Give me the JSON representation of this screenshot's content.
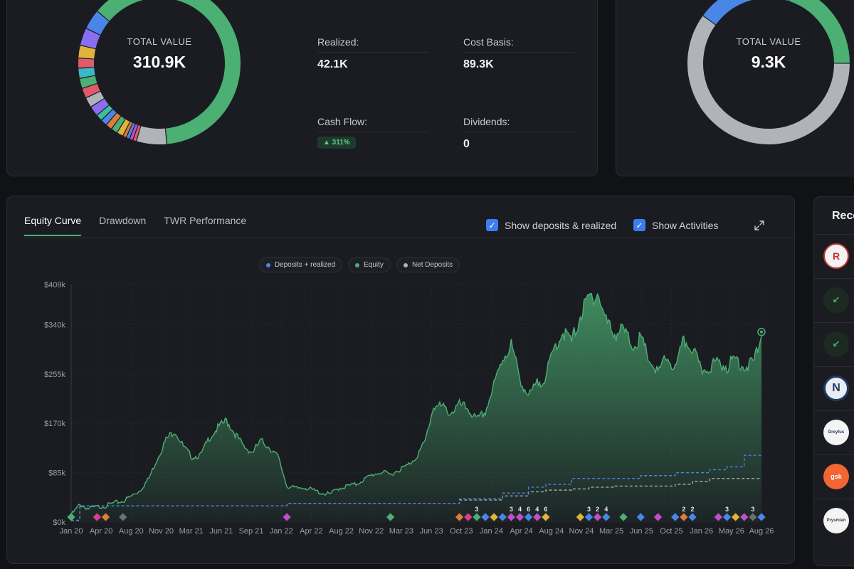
{
  "summary": {
    "total_caption": "TOTAL VALUE",
    "total_value": "310.9K",
    "stats": {
      "realized_label": "Realized:",
      "realized_value": "42.1K",
      "cost_basis_label": "Cost Basis:",
      "cost_basis_value": "89.3K",
      "cash_flow_label": "Cash Flow:",
      "cash_flow_badge": "▲ 311%",
      "dividends_label": "Dividends:",
      "dividends_value": "0"
    }
  },
  "summary2": {
    "total_caption": "TOTAL VALUE",
    "total_value": "9.3K"
  },
  "chart_panel": {
    "tabs": [
      {
        "label": "Equity Curve",
        "active": true
      },
      {
        "label": "Drawdown",
        "active": false
      },
      {
        "label": "TWR Performance",
        "active": false
      }
    ],
    "options": [
      {
        "label": "Show deposits & realized",
        "checked": true
      },
      {
        "label": "Show Activities",
        "checked": true
      }
    ],
    "expand_icon": "expand-icon"
  },
  "recent": {
    "title": "Rece",
    "rows": [
      {
        "icon": "brand-logo-r",
        "text": "R",
        "color": "#c8312f",
        "bg": "#f3f3f3"
      },
      {
        "icon": "arrow-down-left-icon",
        "text": "↙",
        "color": "#4caf73",
        "bg": "#1d2a22"
      },
      {
        "icon": "arrow-down-left-icon",
        "text": "↙",
        "color": "#4caf73",
        "bg": "#1d2a22"
      },
      {
        "icon": "brand-logo-n",
        "text": "N",
        "color": "#1f3a64",
        "bg": "#e9edf3"
      },
      {
        "icon": "brand-logo-dreyfus",
        "text": "Dreyfus",
        "color": "#213c78",
        "bg": "#f4f4f4"
      },
      {
        "icon": "brand-logo-gsk",
        "text": "gsk",
        "color": "#ffffff",
        "bg": "#f36633"
      },
      {
        "icon": "brand-logo-prysmian",
        "text": "Prysmian",
        "color": "#444444",
        "bg": "#f4f4f4"
      }
    ]
  },
  "colors": {
    "equity": "#4caf73",
    "deposits_realized": "#4a86e8",
    "net_deposits": "#b0b3b9",
    "background": "#111216",
    "card": "#1a1c21"
  },
  "chart_data": {
    "type": "area",
    "legend": [
      "Deposits + realized",
      "Equity",
      "Net Deposits"
    ],
    "y_ticks": [
      "$0k",
      "$85k",
      "$170k",
      "$255k",
      "$340k",
      "$409k"
    ],
    "y_tick_values": [
      0,
      85,
      170,
      255,
      340,
      409
    ],
    "ylim": [
      0,
      409
    ],
    "x_ticks": [
      "Jan 20",
      "Apr 20",
      "Aug 20",
      "Nov 20",
      "Mar 21",
      "Jun 21",
      "Sep 21",
      "Jan 22",
      "Apr 22",
      "Aug 22",
      "Nov 22",
      "Mar 23",
      "Jun 23",
      "Oct 23",
      "Jan 24",
      "Apr 24",
      "Aug 24",
      "Nov 24",
      "Mar 25",
      "Jun 25",
      "Oct 25",
      "Jan 26",
      "May 26",
      "Aug 26"
    ],
    "x_range": [
      "Jan 20",
      "Aug 26"
    ],
    "series": [
      {
        "name": "Equity",
        "x": [
          0,
          1,
          2,
          3,
          4,
          5,
          6,
          7,
          8,
          9,
          10,
          11,
          12,
          13,
          14,
          15,
          16,
          17,
          18,
          19,
          20,
          21,
          22,
          23,
          24,
          25,
          26,
          27,
          28,
          29,
          30,
          31,
          32,
          33,
          34,
          35,
          36,
          37,
          38,
          39,
          40,
          41,
          42,
          43,
          44,
          45,
          46,
          47,
          48,
          49,
          50,
          51,
          52,
          53,
          54,
          55,
          56,
          57,
          58,
          59,
          60,
          61,
          62,
          63,
          64,
          65,
          66,
          67,
          68,
          69,
          70,
          71,
          72,
          73,
          74,
          75,
          76,
          77,
          78,
          79,
          80
        ],
        "values": [
          12,
          30,
          23,
          26,
          28,
          33,
          36,
          45,
          55,
          75,
          110,
          142,
          158,
          130,
          112,
          115,
          145,
          162,
          175,
          152,
          130,
          120,
          140,
          128,
          112,
          62,
          58,
          60,
          55,
          50,
          48,
          58,
          62,
          65,
          74,
          82,
          86,
          82,
          90,
          98,
          112,
          138,
          200,
          198,
          188,
          202,
          195,
          175,
          190,
          235,
          282,
          305,
          248,
          215,
          238,
          250,
          300,
          328,
          310,
          355,
          385,
          395,
          345,
          325,
          330,
          305,
          315,
          280,
          255,
          285,
          262,
          312,
          300,
          260,
          268,
          275,
          268,
          282,
          268,
          272,
          320
        ]
      },
      {
        "name": "Deposits + realized",
        "x": [
          0,
          1,
          10,
          25,
          40,
          45,
          50,
          53,
          55,
          58,
          60,
          63,
          66,
          70,
          72,
          74,
          76,
          77,
          78,
          79,
          80
        ],
        "values": [
          3,
          28,
          28,
          32,
          32,
          40,
          50,
          60,
          65,
          75,
          75,
          75,
          80,
          85,
          85,
          90,
          95,
          95,
          115,
          115,
          115
        ]
      },
      {
        "name": "Net Deposits",
        "x": [
          0,
          1,
          10,
          25,
          40,
          45,
          50,
          53,
          55,
          58,
          60,
          63,
          66,
          70,
          72,
          74,
          76,
          77,
          78,
          79,
          80
        ],
        "values": [
          3,
          28,
          28,
          32,
          32,
          38,
          45,
          52,
          55,
          57,
          60,
          62,
          62,
          65,
          70,
          75,
          75,
          75,
          75,
          75,
          75
        ]
      }
    ],
    "activity_markers": [
      {
        "x": 0,
        "color": "#4caf73",
        "label": ""
      },
      {
        "x": 3,
        "color": "#d6418f",
        "label": ""
      },
      {
        "x": 4,
        "color": "#e07b3a",
        "label": ""
      },
      {
        "x": 6,
        "color": "#6b6f78",
        "label": ""
      },
      {
        "x": 25,
        "color": "#c04ec9",
        "label": ""
      },
      {
        "x": 37,
        "color": "#4caf73",
        "label": ""
      },
      {
        "x": 45,
        "color": "#e07b3a",
        "label": ""
      },
      {
        "x": 46,
        "color": "#d6418f",
        "label": ""
      },
      {
        "x": 47,
        "color": "#4caf73",
        "label": "3"
      },
      {
        "x": 48,
        "color": "#4a86e8",
        "label": ""
      },
      {
        "x": 49,
        "color": "#e0b33a",
        "label": ""
      },
      {
        "x": 50,
        "color": "#4a86e8",
        "label": ""
      },
      {
        "x": 51,
        "color": "#c04ec9",
        "label": "3"
      },
      {
        "x": 52,
        "color": "#c04ec9",
        "label": "4"
      },
      {
        "x": 53,
        "color": "#4a86e8",
        "label": "6"
      },
      {
        "x": 54,
        "color": "#c04ec9",
        "label": "4"
      },
      {
        "x": 55,
        "color": "#e0b33a",
        "label": "6"
      },
      {
        "x": 59,
        "color": "#e0b33a",
        "label": ""
      },
      {
        "x": 60,
        "color": "#4a86e8",
        "label": "3"
      },
      {
        "x": 61,
        "color": "#c04ec9",
        "label": "2"
      },
      {
        "x": 62,
        "color": "#4a86e8",
        "label": "4"
      },
      {
        "x": 64,
        "color": "#4caf73",
        "label": ""
      },
      {
        "x": 66,
        "color": "#4a86e8",
        "label": ""
      },
      {
        "x": 68,
        "color": "#c04ec9",
        "label": ""
      },
      {
        "x": 70,
        "color": "#4a86e8",
        "label": ""
      },
      {
        "x": 71,
        "color": "#e07b3a",
        "label": "2"
      },
      {
        "x": 72,
        "color": "#4a86e8",
        "label": "2"
      },
      {
        "x": 75,
        "color": "#c04ec9",
        "label": ""
      },
      {
        "x": 76,
        "color": "#4a86e8",
        "label": "3"
      },
      {
        "x": 77,
        "color": "#e0b33a",
        "label": ""
      },
      {
        "x": 78,
        "color": "#c04ec9",
        "label": ""
      },
      {
        "x": 79,
        "color": "#6b6f78",
        "label": "3"
      },
      {
        "x": 80,
        "color": "#4a86e8",
        "label": ""
      }
    ]
  },
  "donut1": {
    "segments": [
      {
        "value": 62,
        "color": "#4caf73"
      },
      {
        "value": 6,
        "color": "#b0b3b9"
      },
      {
        "value": 0.7,
        "color": "#e05a6a"
      },
      {
        "value": 0.7,
        "color": "#c04ec9"
      },
      {
        "value": 0.7,
        "color": "#4a86e8"
      },
      {
        "value": 0.7,
        "color": "#e07b3a"
      },
      {
        "value": 1.3,
        "color": "#e0b33a"
      },
      {
        "value": 1.3,
        "color": "#4caf73"
      },
      {
        "value": 1.3,
        "color": "#e07b3a"
      },
      {
        "value": 1.3,
        "color": "#4a86e8"
      },
      {
        "value": 1.3,
        "color": "#3dbf9f"
      },
      {
        "value": 2,
        "color": "#8a6ef0"
      },
      {
        "value": 2,
        "color": "#b0b3b9"
      },
      {
        "value": 2,
        "color": "#e05a6a"
      },
      {
        "value": 2,
        "color": "#4caf73"
      },
      {
        "value": 2,
        "color": "#3db6c9"
      },
      {
        "value": 2,
        "color": "#e05a6a"
      },
      {
        "value": 2.5,
        "color": "#e0b33a"
      },
      {
        "value": 3.5,
        "color": "#8a6ef0"
      },
      {
        "value": 4,
        "color": "#4a86e8"
      }
    ]
  },
  "donut2": {
    "segments": [
      {
        "value": 60,
        "color": "#b0b3b9"
      },
      {
        "value": 20,
        "color": "#4a86e8"
      },
      {
        "value": 20,
        "color": "#4caf73"
      }
    ]
  }
}
